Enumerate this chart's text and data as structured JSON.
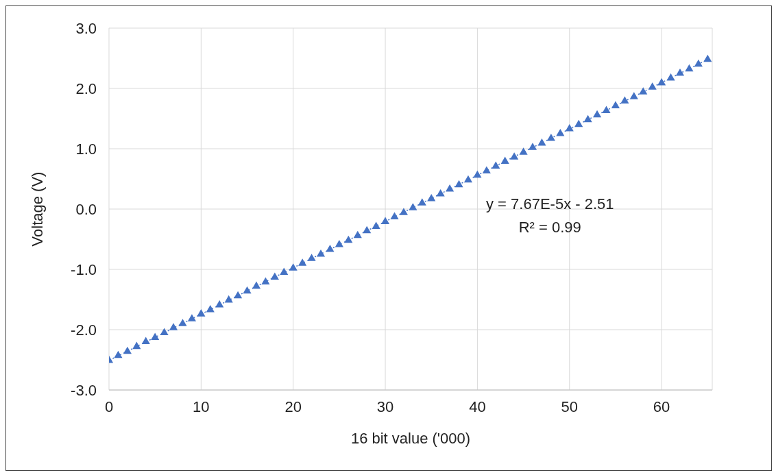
{
  "chart_data": {
    "type": "scatter",
    "xlabel": "16 bit value ('000)",
    "ylabel": "Voltage (V)",
    "x": [
      0,
      1,
      2,
      3,
      4,
      5,
      6,
      7,
      8,
      9,
      10,
      11,
      12,
      13,
      14,
      15,
      16,
      17,
      18,
      19,
      20,
      21,
      22,
      23,
      24,
      25,
      26,
      27,
      28,
      29,
      30,
      31,
      32,
      33,
      34,
      35,
      36,
      37,
      38,
      39,
      40,
      41,
      42,
      43,
      44,
      45,
      46,
      47,
      48,
      49,
      50,
      51,
      52,
      53,
      54,
      55,
      56,
      57,
      58,
      59,
      60,
      61,
      62,
      63,
      64,
      65
    ],
    "series": [
      {
        "color": "#4472c4",
        "marker": "triangle",
        "values": [
          -2.51,
          -2.43,
          -2.36,
          -2.28,
          -2.2,
          -2.13,
          -2.05,
          -1.97,
          -1.9,
          -1.82,
          -1.74,
          -1.67,
          -1.59,
          -1.51,
          -1.44,
          -1.36,
          -1.28,
          -1.21,
          -1.13,
          -1.05,
          -0.98,
          -0.9,
          -0.82,
          -0.75,
          -0.67,
          -0.59,
          -0.52,
          -0.44,
          -0.36,
          -0.29,
          -0.21,
          -0.13,
          -0.06,
          0.02,
          0.1,
          0.17,
          0.25,
          0.33,
          0.4,
          0.48,
          0.56,
          0.63,
          0.71,
          0.79,
          0.86,
          0.94,
          1.02,
          1.09,
          1.17,
          1.25,
          1.33,
          1.4,
          1.48,
          1.56,
          1.63,
          1.71,
          1.79,
          1.86,
          1.94,
          2.02,
          2.09,
          2.17,
          2.25,
          2.32,
          2.4,
          2.48
        ]
      },
      {
        "type": "line",
        "color": "#4472c4",
        "line_style": "dotted",
        "marker": "none",
        "x": [
          0,
          65
        ],
        "values": [
          -2.51,
          2.48
        ]
      }
    ],
    "xlim": [
      0,
      65.5
    ],
    "xticks": [
      0,
      10,
      20,
      30,
      40,
      50,
      60
    ],
    "ylim": [
      -3,
      3
    ],
    "yticks": [
      {
        "value": -3,
        "label": "-3.0"
      },
      {
        "value": -2,
        "label": "-2.0"
      },
      {
        "value": -1,
        "label": "-1.0"
      },
      {
        "value": 0,
        "label": "0.0"
      },
      {
        "value": 1,
        "label": "1.0"
      },
      {
        "value": 2,
        "label": "2.0"
      },
      {
        "value": 3,
        "label": "3.0"
      }
    ],
    "grid": true,
    "annotations": [
      "y = 7.67E-5x - 2.51",
      "R² = 0.99"
    ]
  }
}
